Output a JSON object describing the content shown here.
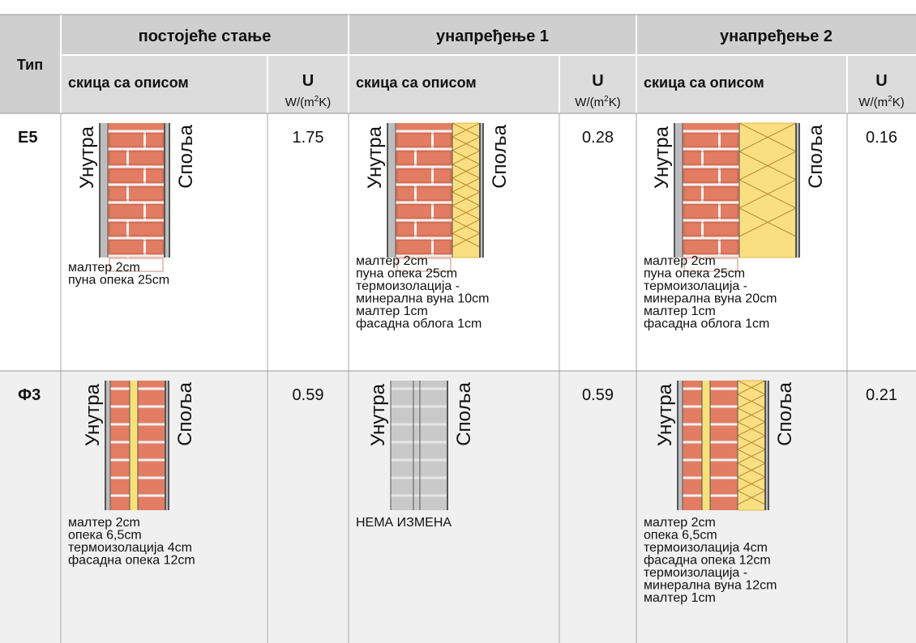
{
  "header": {
    "type": "Тип",
    "groups": [
      "постојеће стање",
      "унапређење 1",
      "унапређење 2"
    ],
    "sketch": "скица са описом",
    "u": "U",
    "u_unit": [
      "W/(m",
      "2",
      "K)"
    ]
  },
  "sketch_labels": {
    "inside": "Унутра",
    "outside": "Споља"
  },
  "rows": [
    {
      "type": "E5",
      "cells": [
        {
          "u": 1.75,
          "description": [
            "малтер 2cm",
            "пуна опека 25cm"
          ]
        },
        {
          "u": 0.28,
          "description": [
            "малтер 2cm",
            "пуна опека 25cm",
            "термоизолација -",
            "минерална вуна 10cm",
            "малтер 1cm",
            "фасадна облога 1cm"
          ]
        },
        {
          "u": 0.16,
          "description": [
            "малтер 2cm",
            "пуна опека 25cm",
            "термоизолација -",
            "минерална вуна 20cm",
            "малтер 1cm",
            "фасадна облога 1cm"
          ]
        }
      ]
    },
    {
      "type": "Ф3",
      "cells": [
        {
          "u": 0.59,
          "description": [
            "малтер 2cm",
            "опека 6,5cm",
            "термоизолација 4cm",
            "фасадна опека 12cm"
          ]
        },
        {
          "u": 0.59,
          "description": [
            "НЕМА ИЗМЕНА"
          ]
        },
        {
          "u": 0.21,
          "description": [
            "малтер 2cm",
            "опека 6,5cm",
            "термоизолација 4cm",
            "фасадна опека 12cm",
            "термоизолација -",
            "минерална вуна 12cm",
            "малтер 1cm"
          ]
        }
      ]
    }
  ]
}
